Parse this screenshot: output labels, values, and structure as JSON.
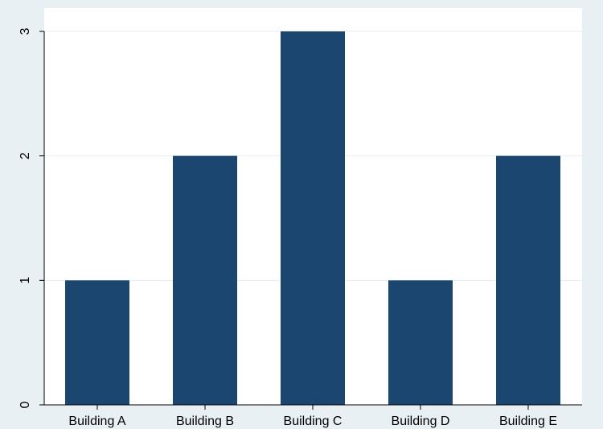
{
  "colors": {
    "outer_background": "#e9f0f4",
    "plot_background": "#ffffff",
    "bar": "#1a4670",
    "gridline": "#e6eef2",
    "axis": "#000000"
  },
  "chart_data": {
    "type": "bar",
    "title": "",
    "xlabel": "",
    "ylabel": "",
    "categories": [
      "Building A",
      "Building B",
      "Building C",
      "Building D",
      "Building E"
    ],
    "values": [
      1,
      2,
      3,
      1,
      2
    ],
    "ylim": [
      0,
      3
    ],
    "yticks": [
      {
        "value": 0,
        "label": "0"
      },
      {
        "value": 1,
        "label": "1"
      },
      {
        "value": 2,
        "label": "2"
      },
      {
        "value": 3,
        "label": "3"
      }
    ],
    "grid": true,
    "legend": "none"
  }
}
